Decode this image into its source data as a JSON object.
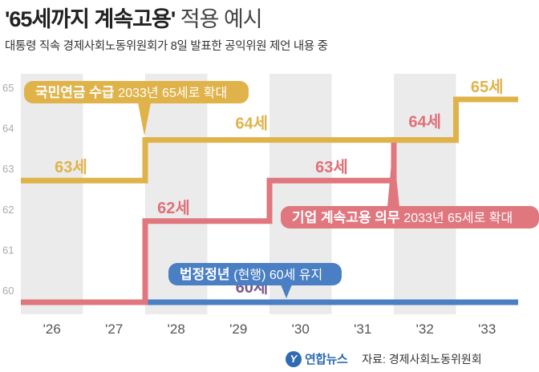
{
  "title_main": "'65세까지 계속고용'",
  "title_rest": "적용 예시",
  "subtitle": "대통령 직속 경제사회노동위원회가 8일 발표한 공익위원 제언 내용 중",
  "source_label": "자료: 경제사회노동위원회",
  "logo_text": "연합뉴스",
  "colors": {
    "pension": "#e0b34a",
    "employment": "#e0777f",
    "retirement": "#4a7fc4",
    "band": "#ebebeb",
    "tick_text": "#555555"
  },
  "chart_data": {
    "type": "line",
    "step": true,
    "categories": [
      "'26",
      "'27",
      "'28",
      "'29",
      "'30",
      "'31",
      "'32",
      "'33"
    ],
    "ylim": [
      60,
      65
    ],
    "yticks": [
      "60",
      "61",
      "62",
      "63",
      "64",
      "65"
    ],
    "grid": false,
    "series": [
      {
        "key": "pension",
        "values": [
          63,
          63,
          64,
          64,
          64,
          64,
          64,
          65
        ],
        "label_bold": "국민연금 수급",
        "label_rest": "2033년 65세로 확대",
        "point_labels": [
          "63세",
          "64세",
          "65세"
        ]
      },
      {
        "key": "employment",
        "values": [
          60,
          60,
          62,
          62,
          63,
          63,
          64,
          65
        ],
        "label_bold": "기업 계속고용 의무",
        "label_rest": "2033년 65세로 확대",
        "point_labels": [
          "62세",
          "63세",
          "64세"
        ]
      },
      {
        "key": "retirement",
        "values": [
          60,
          60,
          60,
          60,
          60,
          60,
          60,
          60
        ],
        "label_bold": "법정정년",
        "label_rest": "(현행) 60세 유지",
        "point_labels": [
          "60세"
        ]
      }
    ]
  }
}
